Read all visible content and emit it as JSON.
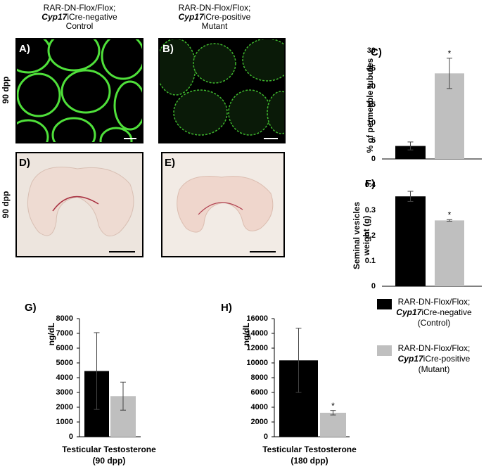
{
  "headers": [
    {
      "line1": "RAR-DN-Flox/Flox;",
      "line2_italic": "Cyp17",
      "line2_rest": "iCre-negative",
      "line3": "Control"
    },
    {
      "line1": "RAR-DN-Flox/Flox;",
      "line2_italic": "Cyp17",
      "line2_rest": "iCre-positive",
      "line3": "Mutant"
    }
  ],
  "row_labels": [
    "90 dpp",
    "90 dpp"
  ],
  "images": [
    {
      "label": "A)"
    },
    {
      "label": "B)"
    },
    {
      "label": "D)"
    },
    {
      "label": "E)"
    }
  ],
  "legend": [
    {
      "line1": "RAR-DN-Flox/Flox;",
      "line2_italic": "Cyp17",
      "line2_rest": "iCre-negative",
      "line3": "(Control)",
      "color": "#000000"
    },
    {
      "line1": "RAR-DN-Flox/Flox;",
      "line2_italic": "Cyp17",
      "line2_rest": "iCre-positive",
      "line3": "(Mutant)",
      "color": "#bfbfbf"
    }
  ],
  "chart_data": [
    {
      "type": "bar",
      "label": "C)",
      "ylabel": [
        "% of permeable tubules"
      ],
      "values": [
        3.6,
        23.7
      ],
      "errors": [
        1.1,
        4.2
      ],
      "colors": [
        "#000000",
        "#bfbfbf"
      ],
      "annotations": [
        {
          "index": 1,
          "text": "*"
        }
      ],
      "ylim": [
        0,
        30
      ],
      "yticks": [
        0,
        5,
        10,
        15,
        20,
        25,
        30
      ],
      "axis_line": false
    },
    {
      "type": "bar",
      "label": "F)",
      "ylabel": [
        "Seminal vesicles",
        "weight (g)"
      ],
      "values": [
        0.355,
        0.26
      ],
      "errors": [
        0.02,
        0.003
      ],
      "colors": [
        "#000000",
        "#bfbfbf"
      ],
      "annotations": [
        {
          "index": 1,
          "text": "*"
        }
      ],
      "ylim": [
        0,
        0.4
      ],
      "yticks": [
        0,
        0.1,
        0.2,
        0.3,
        0.4
      ],
      "axis_line": false
    },
    {
      "type": "bar",
      "label": "G)",
      "ylabel": [
        "ng/dL"
      ],
      "xlabel": [
        "Testicular Testosterone",
        "(90 dpp)"
      ],
      "values": [
        4450,
        2750
      ],
      "errors": [
        2600,
        950
      ],
      "colors": [
        "#000000",
        "#bfbfbf"
      ],
      "annotations": [],
      "ylim": [
        0,
        8000
      ],
      "yticks": [
        0,
        1000,
        2000,
        3000,
        4000,
        5000,
        6000,
        7000,
        8000
      ],
      "axis_line": true
    },
    {
      "type": "bar",
      "label": "H)",
      "ylabel": [
        "ng/dL"
      ],
      "xlabel": [
        "Testicular Testosterone",
        "(180 dpp)"
      ],
      "values": [
        10350,
        3250
      ],
      "errors": [
        4350,
        300
      ],
      "colors": [
        "#000000",
        "#bfbfbf"
      ],
      "annotations": [
        {
          "index": 1,
          "text": "*"
        }
      ],
      "ylim": [
        0,
        16000
      ],
      "yticks": [
        0,
        2000,
        4000,
        6000,
        8000,
        10000,
        12000,
        14000,
        16000
      ],
      "axis_line": true
    }
  ]
}
